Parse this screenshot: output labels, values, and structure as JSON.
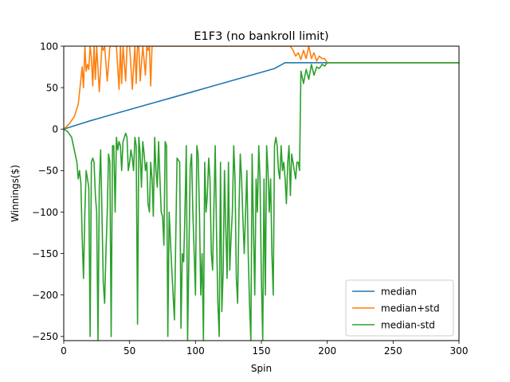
{
  "chart_data": {
    "type": "line",
    "title": "E1F3 (no bankroll limit)",
    "xlabel": "Spin",
    "ylabel": "Winnings($)",
    "xlim": [
      0,
      300
    ],
    "ylim": [
      -255,
      100
    ],
    "xticks": [
      0,
      50,
      100,
      150,
      200,
      250,
      300
    ],
    "yticks": [
      100,
      50,
      0,
      -50,
      -100,
      -150,
      -200,
      -250
    ],
    "grid": false,
    "legend_position": "lower right",
    "series": [
      {
        "name": "median",
        "color": "#1f77b4",
        "x": [
          0,
          10,
          20,
          40,
          60,
          80,
          100,
          120,
          140,
          160,
          168,
          170,
          200,
          250,
          300
        ],
        "y": [
          0,
          5,
          10,
          19,
          28,
          37,
          46,
          55,
          64,
          73,
          80,
          80,
          80,
          80,
          80
        ]
      },
      {
        "name": "median+std",
        "color": "#ff7f0e",
        "x": [
          0,
          4,
          8,
          11,
          13,
          14,
          15,
          16,
          17,
          18,
          19,
          20,
          21,
          22,
          23,
          24,
          25,
          27,
          29,
          30,
          31,
          33,
          35,
          36,
          38,
          40,
          42,
          43,
          44,
          45,
          47,
          48,
          50,
          52,
          54,
          55,
          56,
          57,
          58,
          60,
          62,
          63,
          64,
          65,
          66,
          67,
          68,
          70,
          72,
          73,
          75,
          78,
          80,
          82,
          84,
          86,
          88,
          90,
          92,
          94,
          96,
          98,
          100,
          105,
          110,
          115,
          120,
          125,
          130,
          135,
          140,
          145,
          150,
          155,
          160,
          165,
          170,
          172,
          174,
          176,
          178,
          180,
          182,
          184,
          186,
          188,
          190,
          192,
          194,
          196,
          198,
          200,
          210,
          250,
          300
        ],
        "y": [
          0,
          6,
          15,
          30,
          60,
          75,
          50,
          100,
          70,
          78,
          72,
          100,
          85,
          52,
          100,
          60,
          100,
          45,
          100,
          95,
          100,
          58,
          100,
          100,
          100,
          100,
          48,
          100,
          55,
          100,
          58,
          100,
          100,
          48,
          100,
          55,
          100,
          100,
          58,
          100,
          65,
          100,
          95,
          100,
          52,
          100,
          100,
          100,
          100,
          100,
          100,
          100,
          100,
          100,
          100,
          100,
          100,
          100,
          100,
          100,
          100,
          100,
          100,
          100,
          100,
          100,
          100,
          100,
          100,
          100,
          100,
          100,
          100,
          100,
          100,
          100,
          100,
          100,
          95,
          88,
          92,
          84,
          95,
          85,
          100,
          85,
          92,
          82,
          88,
          85,
          85,
          80,
          80,
          80,
          80
        ]
      },
      {
        "name": "median-std",
        "color": "#2ca02c",
        "x": [
          0,
          3,
          6,
          8,
          10,
          11,
          12,
          13,
          14,
          15,
          16,
          17,
          18,
          19,
          20,
          21,
          22,
          23,
          24,
          25,
          26,
          27,
          28,
          29,
          30,
          31,
          32,
          33,
          34,
          35,
          36,
          37,
          38,
          39,
          40,
          41,
          42,
          43,
          44,
          45,
          46,
          47,
          48,
          49,
          50,
          51,
          52,
          53,
          54,
          55,
          56,
          57,
          58,
          59,
          60,
          61,
          62,
          63,
          64,
          65,
          66,
          67,
          68,
          69,
          70,
          71,
          72,
          73,
          74,
          75,
          76,
          77,
          78,
          79,
          80,
          82,
          84,
          86,
          88,
          89,
          90,
          91,
          92,
          93,
          94,
          95,
          96,
          97,
          98,
          99,
          100,
          101,
          102,
          103,
          104,
          105,
          106,
          107,
          108,
          109,
          110,
          111,
          112,
          113,
          114,
          115,
          116,
          117,
          118,
          119,
          120,
          121,
          122,
          123,
          124,
          125,
          126,
          127,
          128,
          129,
          130,
          131,
          132,
          133,
          134,
          135,
          136,
          137,
          138,
          139,
          140,
          141,
          142,
          143,
          144,
          145,
          146,
          147,
          148,
          149,
          150,
          151,
          152,
          153,
          154,
          155,
          156,
          157,
          158,
          159,
          160,
          161,
          162,
          163,
          164,
          165,
          166,
          167,
          168,
          169,
          170,
          171,
          172,
          173,
          174,
          175,
          176,
          177,
          178,
          179,
          180,
          182,
          184,
          186,
          188,
          190,
          192,
          194,
          196,
          198,
          200,
          210,
          250,
          300
        ],
        "y": [
          0,
          -3,
          -10,
          -25,
          -40,
          -60,
          -50,
          -65,
          -130,
          -180,
          -100,
          -50,
          -60,
          -70,
          -250,
          -40,
          -35,
          -40,
          -80,
          -100,
          -255,
          -70,
          -25,
          -100,
          -185,
          -210,
          -150,
          -100,
          -30,
          -40,
          -250,
          -20,
          -20,
          -100,
          -10,
          -25,
          -15,
          -20,
          -50,
          -15,
          -10,
          -5,
          -10,
          -50,
          -40,
          -25,
          -35,
          -50,
          -10,
          -20,
          -235,
          -10,
          -30,
          -70,
          -15,
          -30,
          -50,
          -40,
          -90,
          -100,
          -40,
          -60,
          -105,
          -10,
          -50,
          -70,
          -15,
          -60,
          -100,
          -105,
          -140,
          -15,
          -20,
          -250,
          -100,
          -170,
          -230,
          -35,
          -40,
          -240,
          -150,
          -160,
          -100,
          -20,
          -255,
          -150,
          -45,
          -30,
          -100,
          -150,
          -200,
          -20,
          -30,
          -100,
          -200,
          -150,
          -255,
          -40,
          -100,
          -80,
          -35,
          -60,
          -150,
          -170,
          -90,
          -20,
          -130,
          -210,
          -250,
          -40,
          -220,
          -170,
          -50,
          -120,
          -180,
          -40,
          -170,
          -130,
          -100,
          -20,
          -60,
          -180,
          -210,
          -100,
          -30,
          -60,
          -110,
          -150,
          -100,
          -50,
          -150,
          -210,
          -255,
          -30,
          -120,
          -200,
          -60,
          -100,
          -20,
          -60,
          -180,
          -255,
          -60,
          -200,
          -20,
          -50,
          -100,
          -60,
          -150,
          -200,
          -20,
          -10,
          -20,
          -50,
          -60,
          -20,
          -50,
          -40,
          -60,
          -90,
          -40,
          -20,
          -80,
          -30,
          -40,
          -50,
          -60,
          -40,
          -40,
          -50,
          70,
          55,
          72,
          60,
          78,
          65,
          75,
          73,
          78,
          76,
          80,
          80,
          80,
          80
        ]
      }
    ]
  }
}
